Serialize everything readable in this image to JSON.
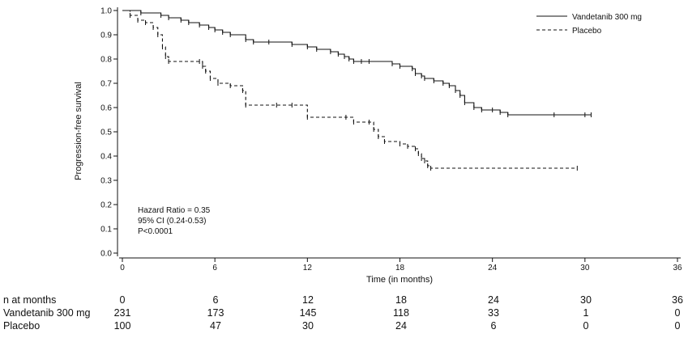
{
  "chart_data": {
    "type": "line",
    "title": "",
    "xlabel": "Time (in months)",
    "ylabel": "Progression-free survival",
    "xlim": [
      0,
      36
    ],
    "ylim": [
      0,
      1.0
    ],
    "x_ticks": [
      "0",
      "6",
      "12",
      "18",
      "24",
      "30",
      "36"
    ],
    "y_ticks": [
      "0.0",
      "0.1",
      "0.2",
      "0.3",
      "0.4",
      "0.5",
      "0.6",
      "0.7",
      "0.8",
      "0.9",
      "1.0"
    ],
    "grid": false,
    "legend_position": "top-right",
    "series": [
      {
        "name": "Vandetanib 300 mg",
        "line_style": "solid",
        "x": [
          0,
          1.2,
          2.5,
          3.0,
          3.8,
          4.3,
          5.0,
          5.6,
          6.0,
          6.5,
          7.0,
          8.0,
          8.5,
          9.5,
          11.0,
          12.0,
          12.6,
          13.5,
          14.0,
          14.4,
          14.7,
          15.0,
          15.5,
          16.0,
          17.5,
          18.0,
          18.8,
          19.0,
          19.4,
          19.6,
          20.2,
          20.8,
          21.2,
          21.6,
          21.9,
          22.2,
          22.8,
          23.3,
          24.0,
          24.5,
          25.0,
          28.0,
          30.0,
          30.4
        ],
        "y": [
          1.0,
          0.99,
          0.98,
          0.97,
          0.96,
          0.95,
          0.94,
          0.93,
          0.92,
          0.91,
          0.9,
          0.88,
          0.87,
          0.87,
          0.86,
          0.85,
          0.84,
          0.83,
          0.82,
          0.81,
          0.8,
          0.79,
          0.79,
          0.79,
          0.78,
          0.77,
          0.76,
          0.74,
          0.73,
          0.72,
          0.71,
          0.7,
          0.69,
          0.67,
          0.65,
          0.62,
          0.6,
          0.59,
          0.59,
          0.58,
          0.57,
          0.57,
          0.57,
          0.57
        ]
      },
      {
        "name": "Placebo",
        "line_style": "dashed",
        "x": [
          0,
          0.5,
          1.0,
          1.5,
          2.0,
          2.3,
          2.6,
          2.8,
          3.0,
          5.0,
          5.2,
          5.4,
          5.7,
          6.2,
          7.0,
          7.8,
          8.0,
          10.0,
          11.0,
          12.0,
          14.5,
          15.0,
          16.0,
          16.3,
          16.6,
          17.0,
          18.0,
          18.5,
          19.0,
          19.2,
          19.4,
          19.6,
          19.8,
          20.0,
          29.5
        ],
        "y": [
          1.0,
          0.98,
          0.96,
          0.95,
          0.93,
          0.9,
          0.85,
          0.81,
          0.79,
          0.79,
          0.77,
          0.75,
          0.72,
          0.7,
          0.69,
          0.67,
          0.61,
          0.61,
          0.61,
          0.56,
          0.56,
          0.54,
          0.54,
          0.51,
          0.48,
          0.46,
          0.45,
          0.44,
          0.43,
          0.41,
          0.39,
          0.38,
          0.36,
          0.35,
          0.35
        ]
      }
    ],
    "annotations": [
      "Hazard Ratio = 0.35",
      "95% CI (0.24-0.53)",
      "P<0.0001"
    ]
  },
  "risk_table": {
    "header_label": "n at months",
    "months": [
      "0",
      "6",
      "12",
      "18",
      "24",
      "30",
      "36"
    ],
    "rows": [
      {
        "label": "Vandetanib 300 mg",
        "values": [
          "231",
          "173",
          "145",
          "118",
          "33",
          "1",
          "0"
        ]
      },
      {
        "label": "Placebo",
        "values": [
          "100",
          "47",
          "30",
          "24",
          "6",
          "0",
          "0"
        ]
      }
    ]
  }
}
